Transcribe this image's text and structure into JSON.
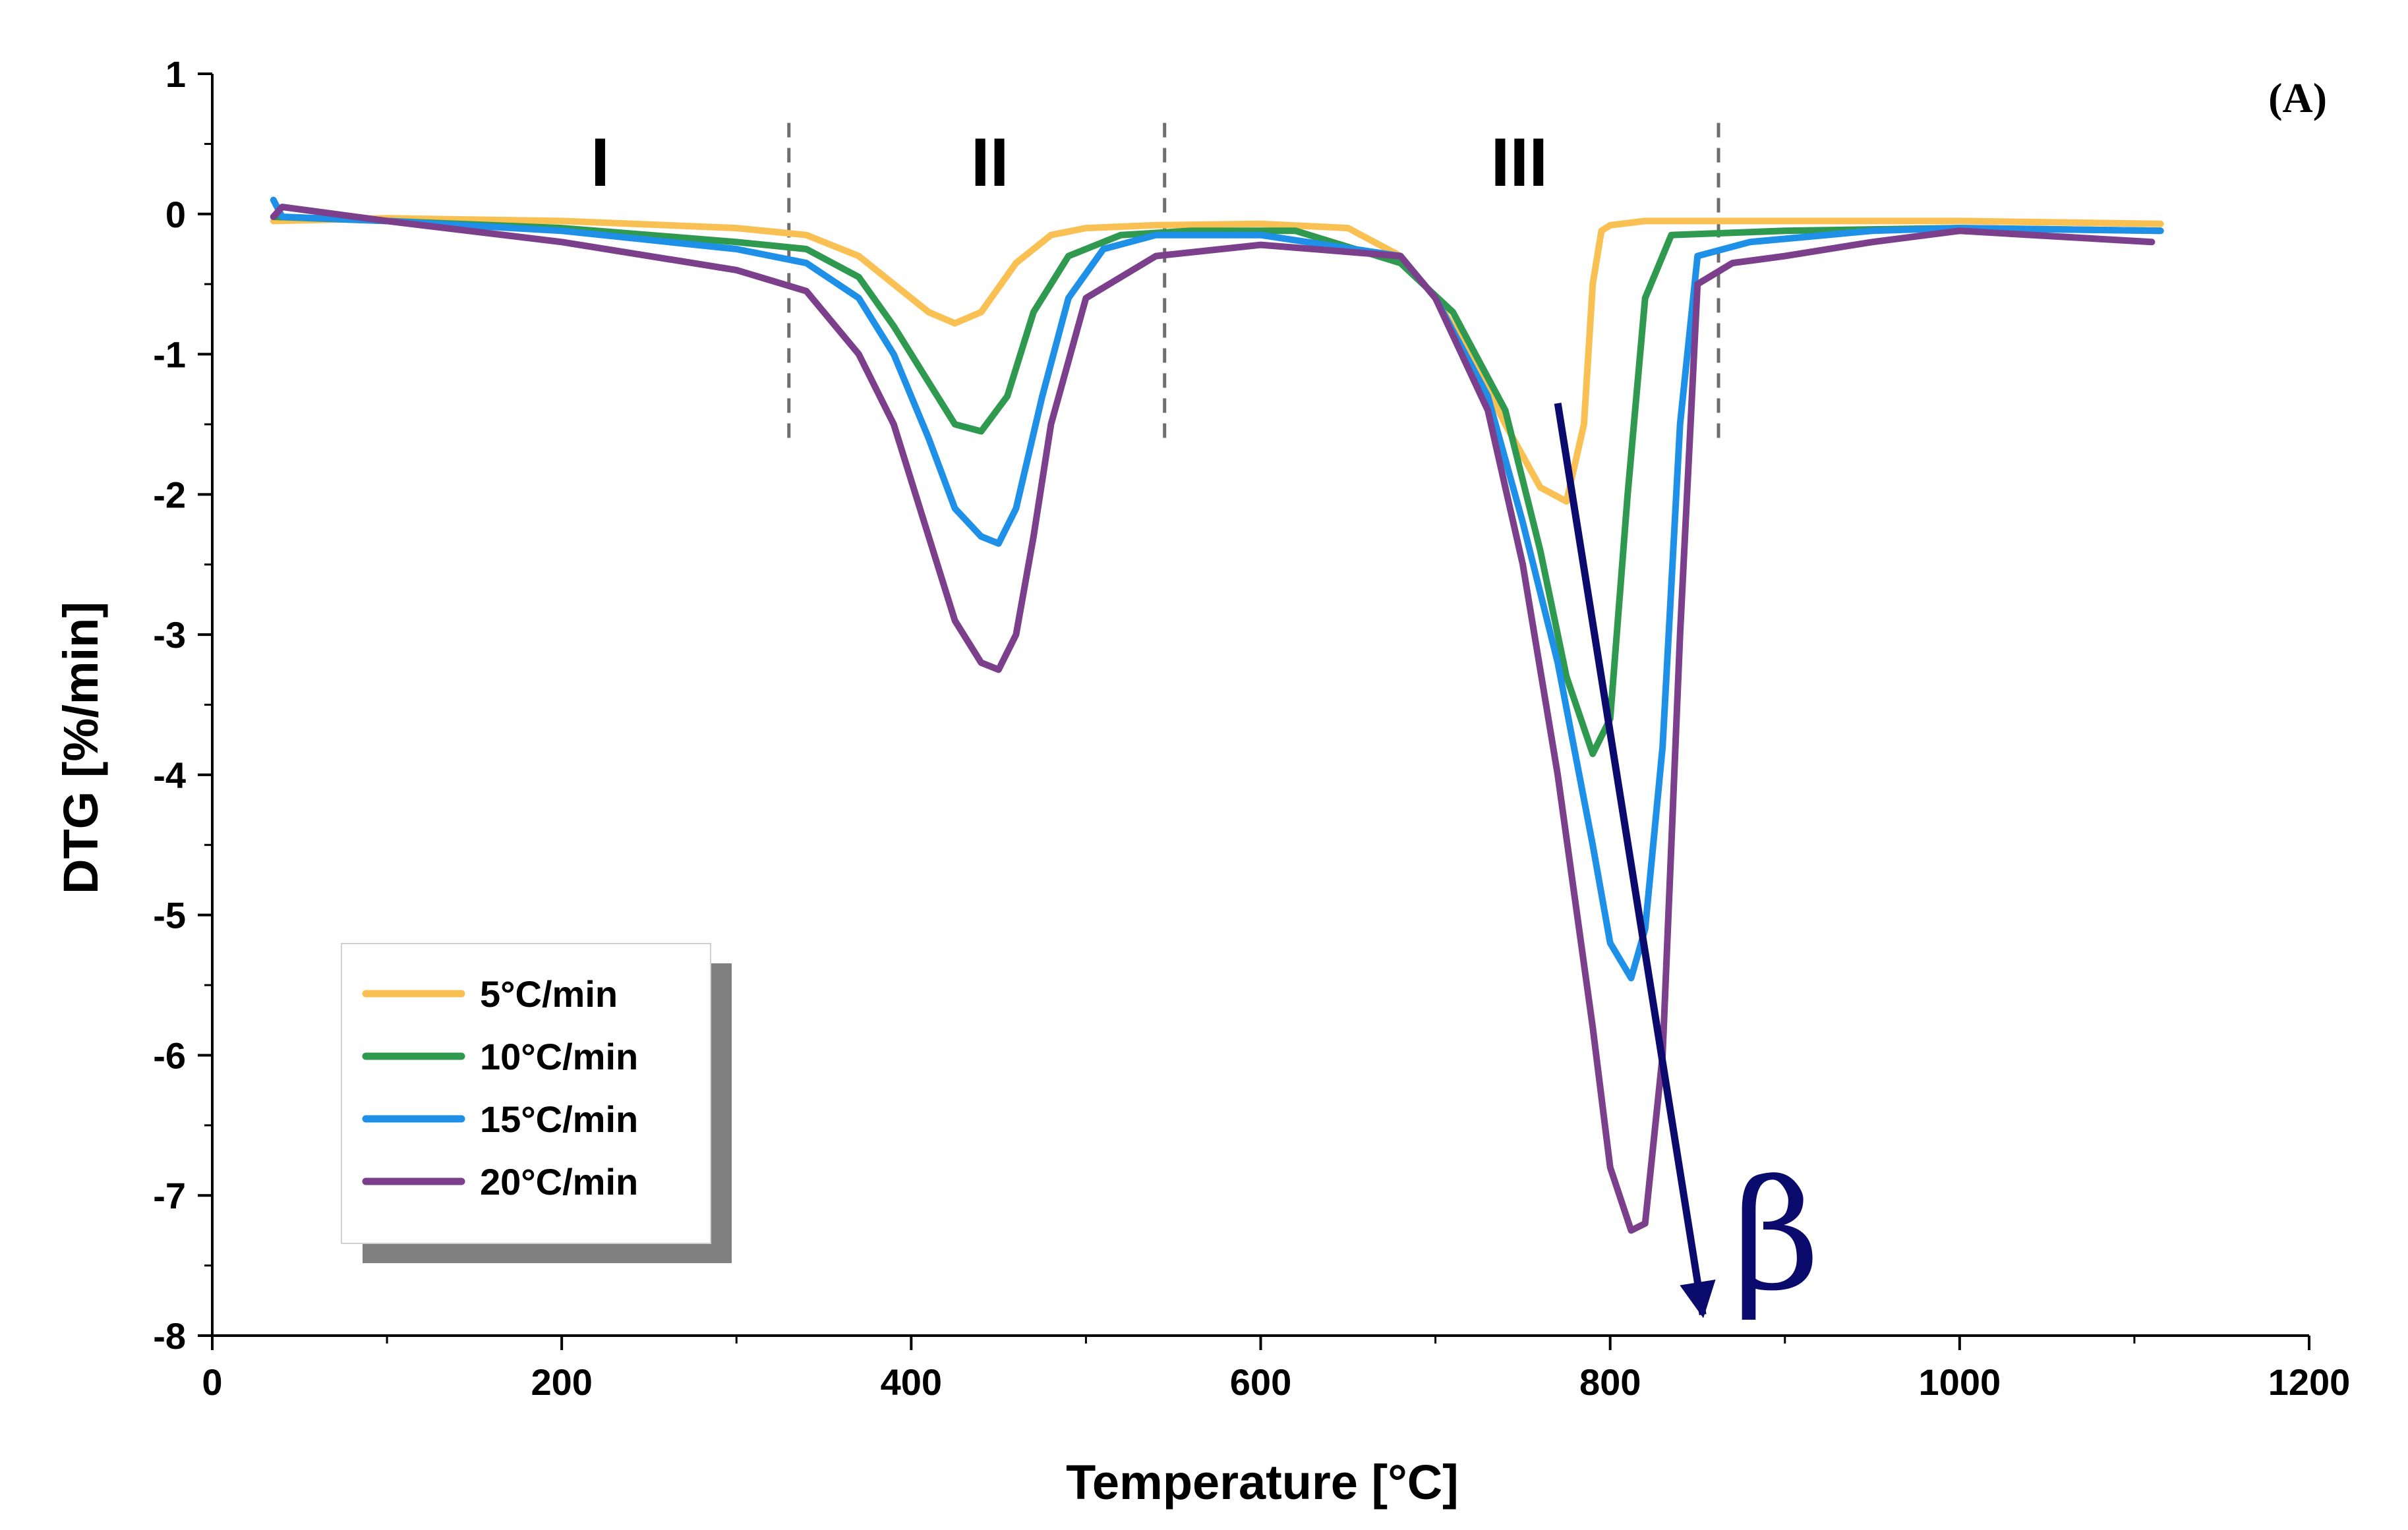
{
  "chart_data": {
    "type": "line",
    "panel_label": "(A)",
    "xlabel": "Temperature [°C]",
    "ylabel": "DTG [%/min]",
    "xlim": [
      0,
      1200
    ],
    "ylim": [
      -8,
      1
    ],
    "xticks": [
      0,
      200,
      400,
      600,
      800,
      1000,
      1200
    ],
    "yticks": [
      1,
      0,
      -1,
      -2,
      -3,
      -4,
      -5,
      -6,
      -7,
      -8
    ],
    "region_boundaries": [
      330,
      545,
      862
    ],
    "regions": [
      {
        "label": "I",
        "x": 222
      },
      {
        "label": "II",
        "x": 445
      },
      {
        "label": "III",
        "x": 748
      }
    ],
    "arrow": {
      "label": "β",
      "from": [
        770,
        -1.35
      ],
      "to": [
        853,
        -7.85
      ]
    },
    "series": [
      {
        "name": "5°C/min",
        "color": "#f9c153",
        "x": [
          35,
          100,
          200,
          300,
          340,
          370,
          390,
          410,
          425,
          440,
          460,
          480,
          500,
          540,
          600,
          650,
          680,
          700,
          720,
          740,
          760,
          775,
          785,
          790,
          795,
          800,
          820,
          900,
          1000,
          1115
        ],
        "y": [
          -0.05,
          -0.03,
          -0.05,
          -0.1,
          -0.15,
          -0.3,
          -0.5,
          -0.7,
          -0.78,
          -0.7,
          -0.35,
          -0.15,
          -0.1,
          -0.08,
          -0.07,
          -0.1,
          -0.3,
          -0.6,
          -1.0,
          -1.5,
          -1.95,
          -2.05,
          -1.5,
          -0.5,
          -0.12,
          -0.08,
          -0.05,
          -0.05,
          -0.05,
          -0.07
        ]
      },
      {
        "name": "10°C/min",
        "color": "#2f9a4f",
        "x": [
          35,
          100,
          200,
          300,
          340,
          370,
          390,
          410,
          425,
          440,
          455,
          470,
          490,
          520,
          560,
          620,
          680,
          710,
          740,
          760,
          775,
          790,
          800,
          810,
          820,
          835,
          900,
          1000,
          1115
        ],
        "y": [
          -0.02,
          -0.05,
          -0.1,
          -0.2,
          -0.25,
          -0.45,
          -0.8,
          -1.2,
          -1.5,
          -1.55,
          -1.3,
          -0.7,
          -0.3,
          -0.15,
          -0.12,
          -0.12,
          -0.35,
          -0.7,
          -1.4,
          -2.4,
          -3.3,
          -3.85,
          -3.6,
          -2.0,
          -0.6,
          -0.15,
          -0.12,
          -0.1,
          -0.12
        ]
      },
      {
        "name": "15°C/min",
        "color": "#1e90e8",
        "x": [
          35,
          40,
          100,
          200,
          300,
          340,
          370,
          390,
          410,
          425,
          440,
          450,
          460,
          475,
          490,
          510,
          540,
          600,
          680,
          700,
          730,
          750,
          770,
          790,
          800,
          812,
          820,
          830,
          840,
          850,
          880,
          950,
          1000,
          1115
        ],
        "y": [
          0.1,
          -0.02,
          -0.05,
          -0.12,
          -0.25,
          -0.35,
          -0.6,
          -1.0,
          -1.6,
          -2.1,
          -2.3,
          -2.35,
          -2.1,
          -1.3,
          -0.6,
          -0.25,
          -0.15,
          -0.15,
          -0.3,
          -0.6,
          -1.3,
          -2.2,
          -3.2,
          -4.5,
          -5.2,
          -5.45,
          -5.1,
          -3.8,
          -1.5,
          -0.3,
          -0.2,
          -0.12,
          -0.1,
          -0.12
        ]
      },
      {
        "name": "20°C/min",
        "color": "#7b3f8c",
        "x": [
          35,
          40,
          100,
          200,
          300,
          340,
          370,
          390,
          410,
          425,
          440,
          450,
          460,
          470,
          480,
          500,
          540,
          600,
          680,
          700,
          730,
          750,
          770,
          790,
          800,
          812,
          820,
          830,
          840,
          850,
          870,
          900,
          950,
          1000,
          1110
        ],
        "y": [
          -0.02,
          0.05,
          -0.05,
          -0.2,
          -0.4,
          -0.55,
          -1.0,
          -1.5,
          -2.3,
          -2.9,
          -3.2,
          -3.25,
          -3.0,
          -2.3,
          -1.5,
          -0.6,
          -0.3,
          -0.22,
          -0.3,
          -0.6,
          -1.4,
          -2.5,
          -4.0,
          -5.8,
          -6.8,
          -7.25,
          -7.2,
          -6.0,
          -3.0,
          -0.5,
          -0.35,
          -0.3,
          -0.2,
          -0.12,
          -0.2
        ]
      }
    ]
  }
}
